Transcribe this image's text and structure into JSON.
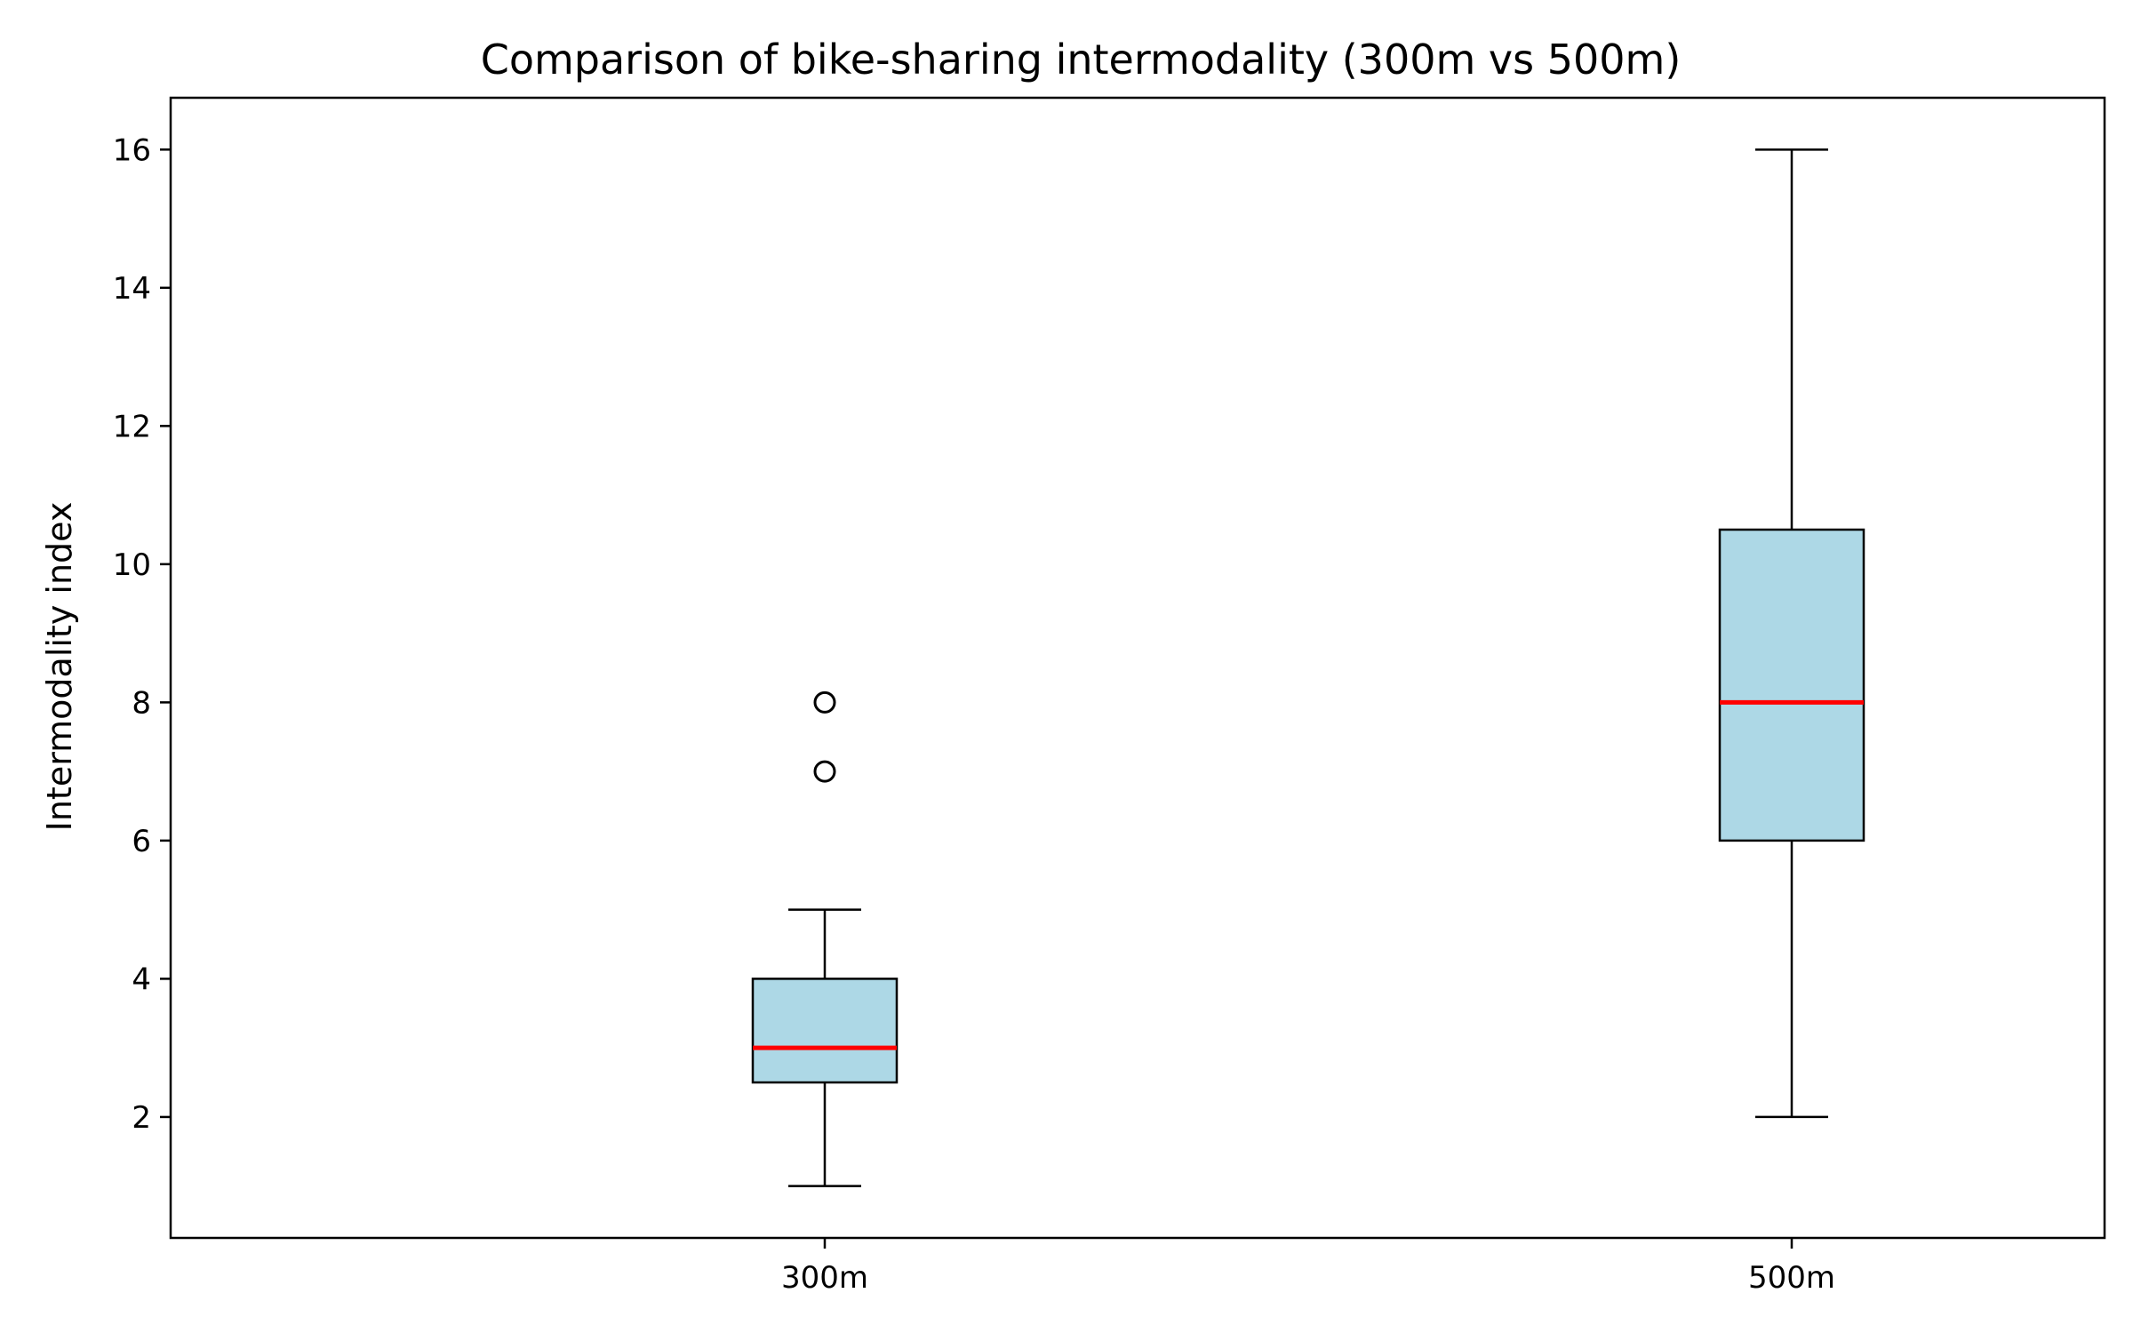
{
  "chart_data": {
    "type": "box",
    "title": "Comparison of bike-sharing intermodality (300m vs 500m)",
    "xlabel": "",
    "ylabel": "Intermodality index",
    "categories": [
      "300m",
      "500m"
    ],
    "boxes": [
      {
        "label": "300m",
        "whisker_low": 1,
        "q1": 2.5,
        "median": 3,
        "q3": 4,
        "whisker_high": 5,
        "outliers": [
          7,
          8
        ]
      },
      {
        "label": "500m",
        "whisker_low": 2,
        "q1": 6,
        "median": 8,
        "q3": 10.5,
        "whisker_high": 16,
        "outliers": []
      }
    ],
    "ylim": [
      0.25,
      16.75
    ],
    "yticks": [
      2,
      4,
      6,
      8,
      10,
      12,
      14,
      16
    ],
    "grid": false,
    "legend": "none",
    "colors": {
      "box_fill": "#add8e6",
      "median": "#ff0000",
      "lines": "#000000"
    }
  }
}
